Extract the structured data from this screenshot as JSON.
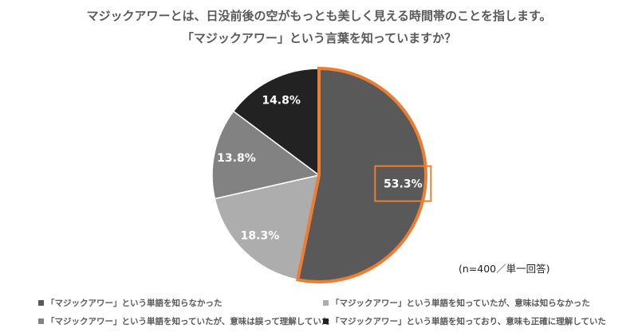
{
  "title_line1": "マジックアワーとは、日没前後の空がもっとも美しく見える時間帯のことを指します。",
  "title_line2": "「マジックアワー」という言葉を知っていますか？",
  "note": "(n=400／単一回答)",
  "highlight_color": "#ed7d31",
  "chart_data": {
    "type": "pie",
    "start": "top, clockwise",
    "categories": [
      "「マジックアワー」という単語を知らなかった",
      "「マジックアワー」という単語を知っていたが、意味は知らなかった",
      "「マジックアワー」という単語を知っていたが、意味は誤って理解していた",
      "「マジックアワー」という単語を知っており、意味も正確に理解していた"
    ],
    "values": [
      53.3,
      18.3,
      13.8,
      14.8
    ],
    "labels": [
      "53.3%",
      "18.3%",
      "13.8%",
      "14.8%"
    ],
    "colors": [
      "#595959",
      "#adadad",
      "#828282",
      "#222222"
    ],
    "highlighted": [
      0
    ],
    "legend_position": "bottom"
  }
}
